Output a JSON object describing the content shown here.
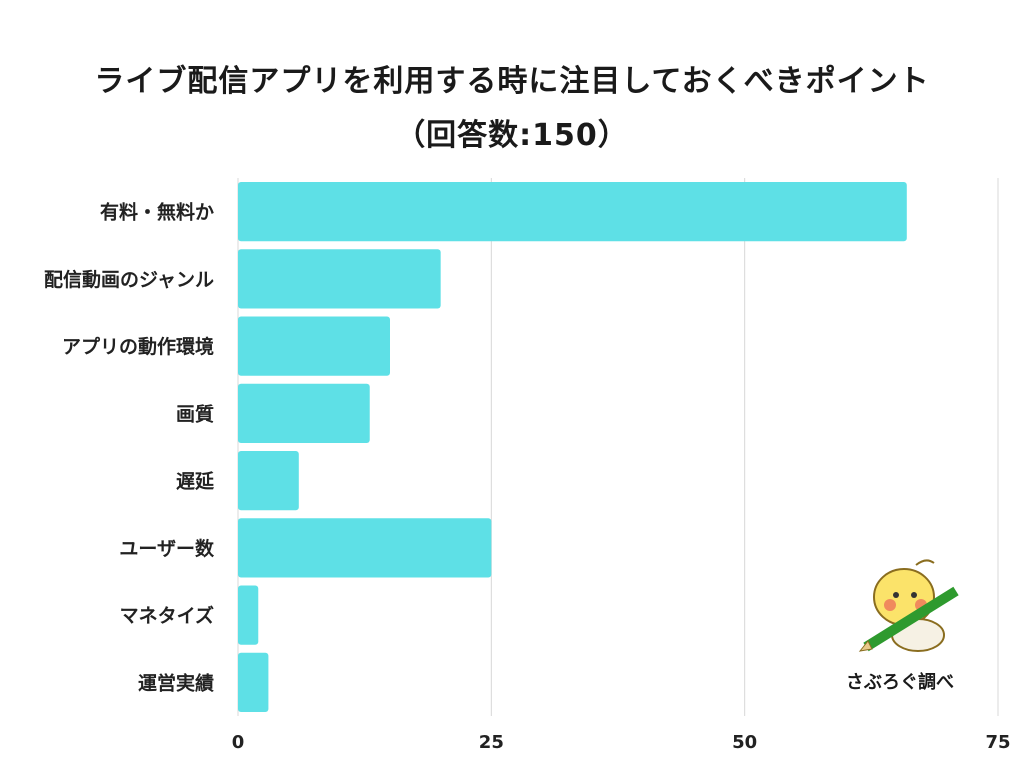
{
  "title_line1": "ライブ配信アプリを利用する時に注目しておくべきポイント",
  "title_line2": "（回答数:150）",
  "credit": "さぶろぐ調べ",
  "colors": {
    "bar": "#5ee0e6",
    "grid": "#d8d8d8"
  },
  "chart_data": {
    "type": "bar",
    "orientation": "horizontal",
    "categories": [
      "有料・無料か",
      "配信動画のジャンル",
      "アプリの動作環境",
      "画質",
      "遅延",
      "ユーザー数",
      "マネタイズ",
      "運営実績"
    ],
    "values": [
      66,
      20,
      15,
      13,
      6,
      25,
      2,
      3
    ],
    "xlim": [
      0,
      75
    ],
    "xticks": [
      "0",
      "25",
      "50",
      "75"
    ],
    "grid": true
  }
}
